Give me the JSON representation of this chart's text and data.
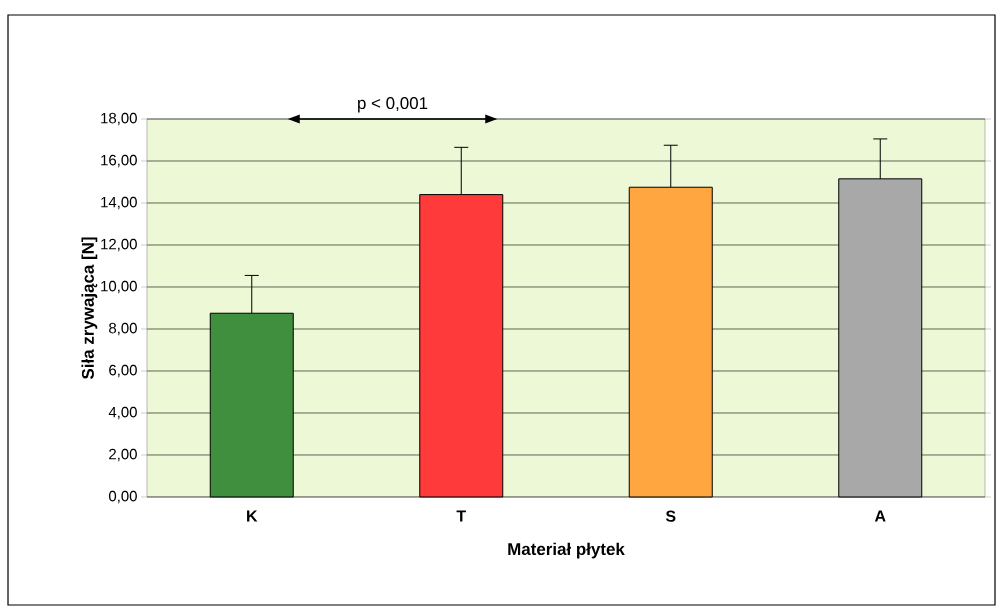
{
  "chart_data": {
    "type": "bar",
    "xlabel": "Materiał płytek",
    "ylabel": "Siła zrywająca [N]",
    "categories": [
      "K",
      "T",
      "S",
      "A"
    ],
    "values": [
      8.75,
      14.4,
      14.75,
      15.15
    ],
    "colors": [
      "#3f8f3f",
      "#ff3a3a",
      "#ffa640",
      "#a8a8a8"
    ],
    "errors": [
      [
        8.75,
        10.55
      ],
      [
        14.4,
        16.65
      ],
      [
        14.75,
        16.75
      ],
      [
        15.15,
        17.05
      ]
    ],
    "ylim": [
      0,
      18
    ],
    "yticks": [
      {
        "value": 0,
        "label": "0,00"
      },
      {
        "value": 2,
        "label": "2,00"
      },
      {
        "value": 4,
        "label": "4,00"
      },
      {
        "value": 6,
        "label": "6,00"
      },
      {
        "value": 8,
        "label": "8,00"
      },
      {
        "value": 10,
        "label": "10,00"
      },
      {
        "value": 12,
        "label": "12,00"
      },
      {
        "value": 14,
        "label": "14,00"
      },
      {
        "value": 16,
        "label": "16,00"
      },
      {
        "value": 18,
        "label": "18,00"
      }
    ],
    "grid": "y",
    "annotations": [
      "p < 0,001"
    ]
  }
}
